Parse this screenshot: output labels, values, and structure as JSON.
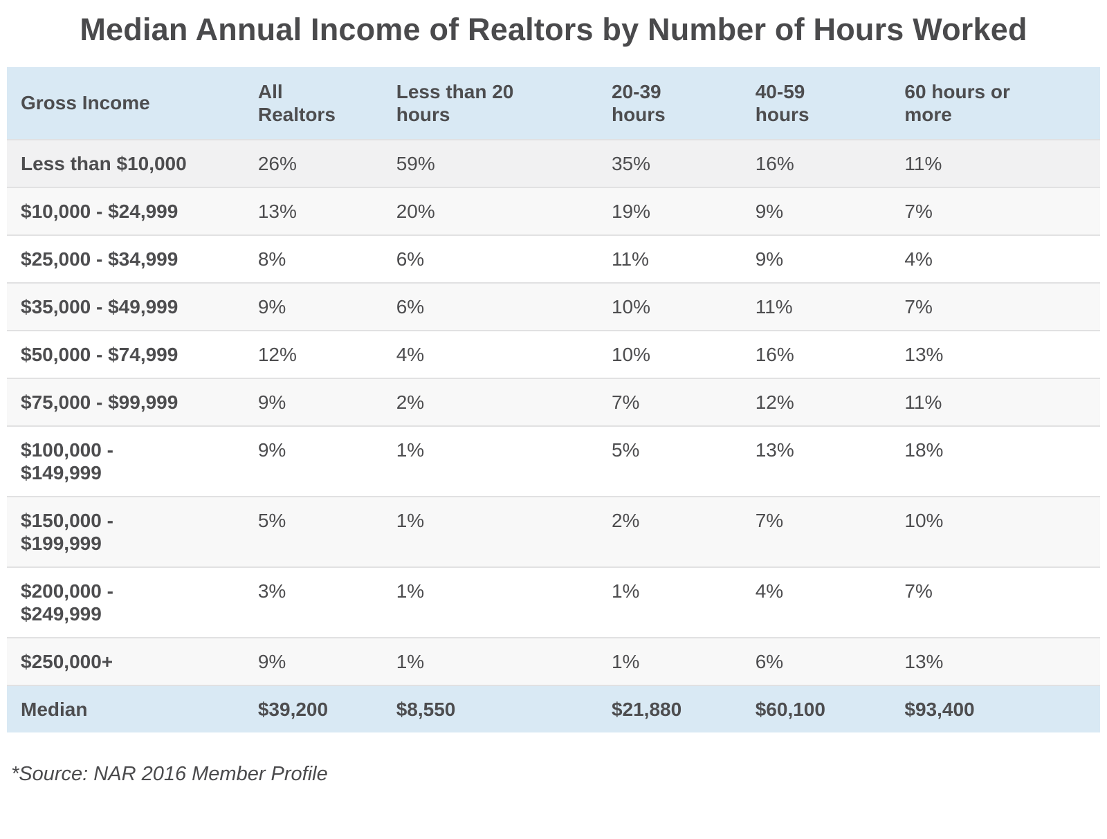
{
  "title": "Median Annual Income of Realtors by Number of Hours Worked",
  "source_note": "*Source: NAR 2016 Member Profile",
  "colors": {
    "header_bg": "#d9e9f4",
    "median_row_bg": "#d9e9f4",
    "first_row_bg": "#f1f1f2",
    "even_row_bg": "#f8f8f8",
    "odd_row_bg": "#ffffff",
    "separator": "#e1e1e2",
    "text": "#4d4d4f"
  },
  "chart_data": {
    "type": "table",
    "title": "Median Annual Income of Realtors by Number of Hours Worked",
    "columns": [
      "Gross Income",
      "All\nRealtors",
      "Less than 20\nhours",
      "20-39\nhours",
      "40-59\nhours",
      "60 hours or\nmore"
    ],
    "rows": [
      {
        "label": "Less than $10,000",
        "values": [
          "26%",
          "59%",
          "35%",
          "16%",
          "11%"
        ]
      },
      {
        "label": "$10,000 - $24,999",
        "values": [
          "13%",
          "20%",
          "19%",
          "9%",
          "7%"
        ]
      },
      {
        "label": "$25,000 - $34,999",
        "values": [
          "8%",
          "6%",
          "11%",
          "9%",
          "4%"
        ]
      },
      {
        "label": "$35,000 - $49,999",
        "values": [
          "9%",
          "6%",
          "10%",
          "11%",
          "7%"
        ]
      },
      {
        "label": "$50,000 - $74,999",
        "values": [
          "12%",
          "4%",
          "10%",
          "16%",
          "13%"
        ]
      },
      {
        "label": "$75,000 - $99,999",
        "values": [
          "9%",
          "2%",
          "7%",
          "12%",
          "11%"
        ]
      },
      {
        "label": "$100,000 -\n$149,999",
        "values": [
          "9%",
          "1%",
          "5%",
          "13%",
          "18%"
        ]
      },
      {
        "label": "$150,000 -\n$199,999",
        "values": [
          "5%",
          "1%",
          "2%",
          "7%",
          "10%"
        ]
      },
      {
        "label": "$200,000 -\n$249,999",
        "values": [
          "3%",
          "1%",
          "1%",
          "4%",
          "7%"
        ]
      },
      {
        "label": "$250,000+",
        "values": [
          "9%",
          "1%",
          "1%",
          "6%",
          "13%"
        ]
      }
    ],
    "median_row": {
      "label": "Median",
      "values": [
        "$39,200",
        "$8,550",
        "$21,880",
        "$60,100",
        "$93,400"
      ]
    }
  }
}
